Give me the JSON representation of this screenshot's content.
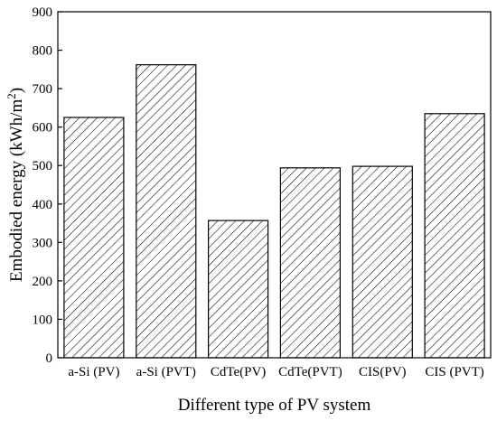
{
  "chart_data": {
    "type": "bar",
    "title": "",
    "categories": [
      "a-Si (PV)",
      "a-Si (PVT)",
      "CdTe(PV)",
      "CdTe(PVT)",
      "CIS(PV)",
      "CIS (PVT)"
    ],
    "values": [
      625,
      762,
      357,
      494,
      498,
      635
    ],
    "xlabel": "Different type of PV system",
    "ylabel": "Embodied energy (kWh/m",
    "ylabel_superscript": "2",
    "ylabel_close": ")",
    "ylim": [
      0,
      900
    ],
    "yticks": [
      0,
      100,
      200,
      300,
      400,
      500,
      600,
      700,
      800,
      900
    ],
    "grid": false,
    "fill": "diagonal-hatch",
    "bar_color": "#000000",
    "background": "#ffffff"
  }
}
